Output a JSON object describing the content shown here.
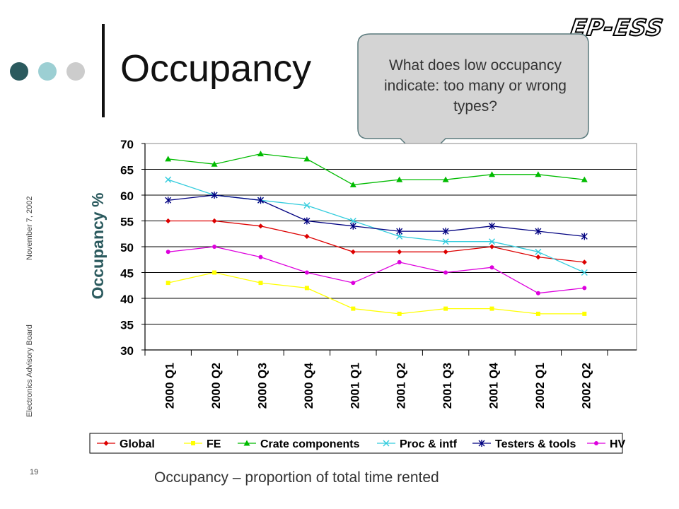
{
  "slide": {
    "title": "Occupancy",
    "logo_text": "EP-ESS",
    "callout": "What does low occupancy  indicate: too many or wrong types?",
    "side_org": "Electronics Advisory Board",
    "side_date": "November 7, 2002",
    "page_number": "19",
    "caption": "Occupancy – proportion of total time rented",
    "dot_colors": [
      "#2b5a5e",
      "#9ccfd3",
      "#cccccc"
    ]
  },
  "chart_data": {
    "type": "line",
    "title": "",
    "xlabel": "",
    "ylabel": "Occupancy %",
    "ylim": [
      30,
      70
    ],
    "yticks": [
      30,
      35,
      40,
      45,
      50,
      55,
      60,
      65,
      70
    ],
    "grid": "horizontal",
    "legend_position": "bottom",
    "categories": [
      "2000 Q1",
      "2000 Q2",
      "2000 Q3",
      "2000 Q4",
      "2001 Q1",
      "2001 Q2",
      "2001 Q3",
      "2001 Q4",
      "2002 Q1",
      "2002 Q2"
    ],
    "series": [
      {
        "name": "Global",
        "color": "#dd0000",
        "marker": "diamond",
        "values": [
          55,
          55,
          54,
          52,
          49,
          49,
          49,
          50,
          48,
          47
        ]
      },
      {
        "name": "FE",
        "color": "#ffff00",
        "marker": "square",
        "values": [
          43,
          45,
          43,
          42,
          38,
          37,
          38,
          38,
          37,
          37
        ]
      },
      {
        "name": "Crate components",
        "color": "#00bb00",
        "marker": "triangle",
        "values": [
          67,
          66,
          68,
          67,
          62,
          63,
          63,
          64,
          64,
          63
        ]
      },
      {
        "name": "Proc & intf",
        "color": "#33ccdd",
        "marker": "x",
        "values": [
          63,
          60,
          59,
          58,
          55,
          52,
          51,
          51,
          49,
          45
        ]
      },
      {
        "name": "Testers & tools",
        "color": "#000080",
        "marker": "star",
        "values": [
          59,
          60,
          59,
          55,
          54,
          53,
          53,
          54,
          53,
          52
        ]
      },
      {
        "name": "HV",
        "color": "#dd00dd",
        "marker": "circle",
        "values": [
          49,
          50,
          48,
          45,
          43,
          47,
          45,
          46,
          41,
          42
        ]
      }
    ]
  }
}
